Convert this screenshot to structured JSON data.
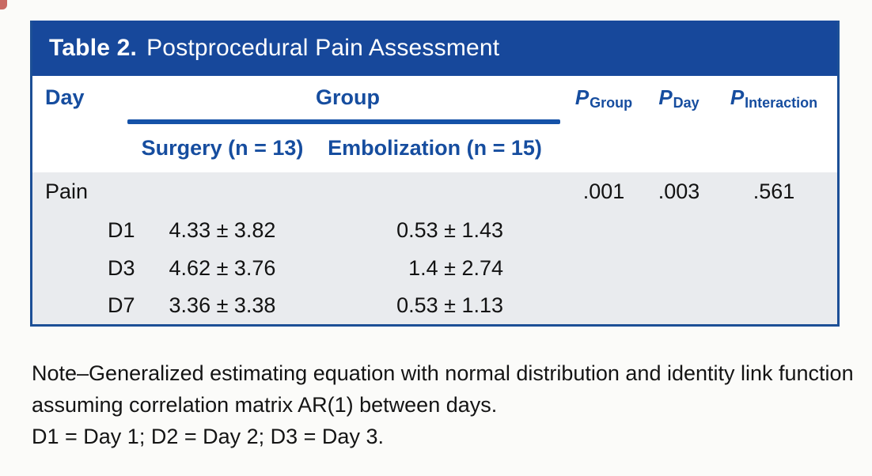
{
  "colors": {
    "title_bar_blue": "#17489b",
    "header_text_blue": "#164d9f",
    "group_rule_blue": "#1552a8",
    "border_blue": "#1c4f96",
    "body_band_gray": "#e9ebee",
    "artifact_red": "#c0504a"
  },
  "table": {
    "title_label": "Table 2.",
    "title_text": "Postprocedural Pain Assessment",
    "header": {
      "day": "Day",
      "group": "Group",
      "sub_surgery": "Surgery (n = 13)",
      "sub_embolization": "Embolization (n = 15)",
      "p_columns": [
        {
          "symbol": "P",
          "subscript": "Group"
        },
        {
          "symbol": "P",
          "subscript": "Day"
        },
        {
          "symbol": "P",
          "subscript": "Interaction"
        }
      ]
    },
    "rows": [
      {
        "label": "Pain",
        "surgery": "",
        "embolization": "",
        "p_group": ".001",
        "p_day": ".003",
        "p_interaction": ".561"
      },
      {
        "label": "D1",
        "surgery": "4.33 ± 3.82",
        "embolization": "0.53 ± 1.43",
        "p_group": "",
        "p_day": "",
        "p_interaction": ""
      },
      {
        "label": "D3",
        "surgery": "4.62 ± 3.76",
        "embolization": "1.4 ± 2.74",
        "p_group": "",
        "p_day": "",
        "p_interaction": ""
      },
      {
        "label": "D7",
        "surgery": "3.36 ± 3.38",
        "embolization": "0.53 ± 1.13",
        "p_group": "",
        "p_day": "",
        "p_interaction": ""
      }
    ],
    "note": {
      "line1": "Note–Generalized estimating equation with normal distribution and identity link function assuming correlation matrix AR(1) between days.",
      "line2": "D1 = Day 1; D2 = Day 2; D3 = Day 3."
    }
  },
  "chart_data": {
    "type": "table",
    "title": "Table 2. Postprocedural Pain Assessment",
    "columns": [
      "Day",
      "Surgery (n = 13)",
      "Embolization (n = 15)",
      "P Group",
      "P Day",
      "P Interaction"
    ],
    "rows": [
      [
        "Pain",
        "",
        "",
        ".001",
        ".003",
        ".561"
      ],
      [
        "D1",
        "4.33 ± 3.82",
        "0.53 ± 1.43",
        "",
        "",
        ""
      ],
      [
        "D3",
        "4.62 ± 3.76",
        "1.4 ± 2.74",
        "",
        "",
        ""
      ],
      [
        "D7",
        "3.36 ± 3.38",
        "0.53 ± 1.13",
        "",
        "",
        ""
      ]
    ],
    "note": "Note–Generalized estimating equation with normal distribution and identity link function assuming correlation matrix AR(1) between days. D1 = Day 1; D2 = Day 2; D3 = Day 3."
  }
}
